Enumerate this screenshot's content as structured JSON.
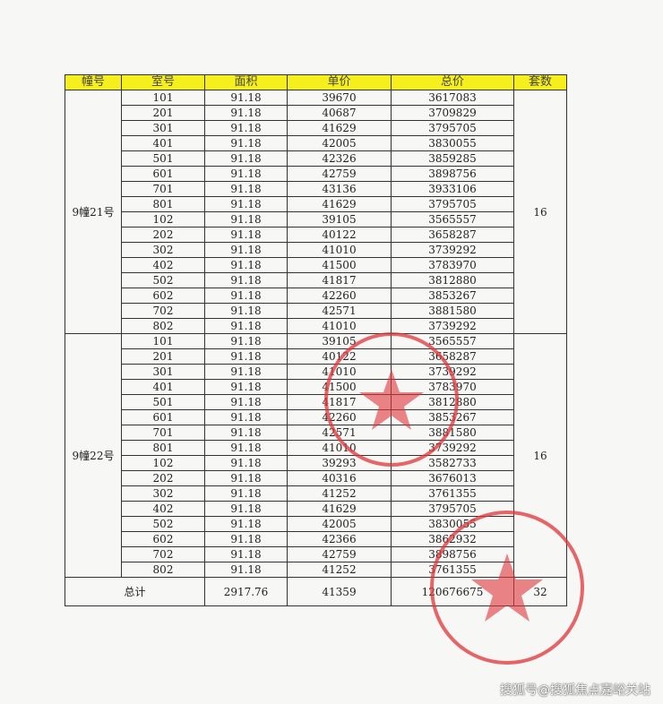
{
  "table": {
    "headers": [
      "幢号",
      "室号",
      "面积",
      "单价",
      "总价",
      "套数"
    ],
    "groups": [
      {
        "building": "9幢21号",
        "count": "16",
        "rows": [
          [
            "101",
            "91.18",
            "39670",
            "3617083"
          ],
          [
            "201",
            "91.18",
            "40687",
            "3709829"
          ],
          [
            "301",
            "91.18",
            "41629",
            "3795705"
          ],
          [
            "401",
            "91.18",
            "42005",
            "3830055"
          ],
          [
            "501",
            "91.18",
            "42326",
            "3859285"
          ],
          [
            "601",
            "91.18",
            "42759",
            "3898756"
          ],
          [
            "701",
            "91.18",
            "43136",
            "3933106"
          ],
          [
            "801",
            "91.18",
            "41629",
            "3795705"
          ],
          [
            "102",
            "91.18",
            "39105",
            "3565557"
          ],
          [
            "202",
            "91.18",
            "40122",
            "3658287"
          ],
          [
            "302",
            "91.18",
            "41010",
            "3739292"
          ],
          [
            "402",
            "91.18",
            "41500",
            "3783970"
          ],
          [
            "502",
            "91.18",
            "41817",
            "3812880"
          ],
          [
            "602",
            "91.18",
            "42260",
            "3853267"
          ],
          [
            "702",
            "91.18",
            "42571",
            "3881580"
          ],
          [
            "802",
            "91.18",
            "41010",
            "3739292"
          ]
        ]
      },
      {
        "building": "9幢22号",
        "count": "16",
        "rows": [
          [
            "101",
            "91.18",
            "39105",
            "3565557"
          ],
          [
            "201",
            "91.18",
            "40122",
            "3658287"
          ],
          [
            "301",
            "91.18",
            "41010",
            "3739292"
          ],
          [
            "401",
            "91.18",
            "41500",
            "3783970"
          ],
          [
            "501",
            "91.18",
            "41817",
            "3812880"
          ],
          [
            "601",
            "91.18",
            "42260",
            "3853267"
          ],
          [
            "701",
            "91.18",
            "42571",
            "3881580"
          ],
          [
            "801",
            "91.18",
            "41010",
            "3739292"
          ],
          [
            "102",
            "91.18",
            "39293",
            "3582733"
          ],
          [
            "202",
            "91.18",
            "40316",
            "3676013"
          ],
          [
            "302",
            "91.18",
            "41252",
            "3761355"
          ],
          [
            "402",
            "91.18",
            "41629",
            "3795705"
          ],
          [
            "502",
            "91.18",
            "42005",
            "3830055"
          ],
          [
            "602",
            "91.18",
            "42366",
            "3862932"
          ],
          [
            "702",
            "91.18",
            "42759",
            "3898756"
          ],
          [
            "802",
            "91.18",
            "41252",
            "3761355"
          ]
        ]
      }
    ],
    "total": {
      "label": "总计",
      "area": "2917.76",
      "unit_price": "41359",
      "total_price": "120676675",
      "count": "32"
    }
  },
  "stamp_color": "#e0343a",
  "header_color": "#f5ef1e",
  "watermark": "搜狐号@搜狐焦点嘉峪关站"
}
